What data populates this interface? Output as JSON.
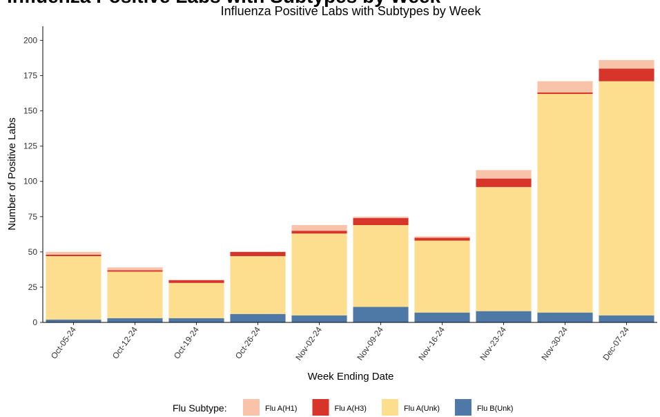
{
  "header_title": "Influenza Positive Labs with Subtypes by Week",
  "chart_data": {
    "type": "stacked_bar",
    "title": "Influenza Positive Labs with Subtypes by Week",
    "x_label": "Week Ending Date",
    "y_label": "Number of Positive Labs",
    "legend_title": "Flu Subtype:",
    "categories": [
      "Oct-05-24",
      "Oct-12-24",
      "Oct-19-24",
      "Oct-26-24",
      "Nov-02-24",
      "Nov-09-24",
      "Nov-16-24",
      "Nov-23-24",
      "Nov-30-24",
      "Dec-07-24"
    ],
    "series": [
      {
        "name": "Flu A(H1)",
        "color": "#f9c3a9",
        "values": [
          2,
          2,
          0,
          0,
          4,
          1,
          1,
          6,
          8,
          6
        ]
      },
      {
        "name": "Flu A(H3)",
        "color": "#d7342a",
        "values": [
          1,
          1,
          2,
          3,
          2,
          5,
          2,
          6,
          1,
          9
        ]
      },
      {
        "name": "Flu A(Unk)",
        "color": "#fdde8e",
        "values": [
          45,
          33,
          25,
          41,
          58,
          58,
          51,
          88,
          155,
          166
        ]
      },
      {
        "name": "Flu B(Unk)",
        "color": "#4e79a7",
        "values": [
          2,
          3,
          3,
          6,
          5,
          11,
          7,
          8,
          7,
          5
        ]
      }
    ],
    "ylim": [
      0,
      210
    ],
    "yticks": [
      0,
      25,
      50,
      75,
      100,
      125,
      150,
      175,
      200
    ],
    "grid": false,
    "legend_position": "bottom"
  }
}
